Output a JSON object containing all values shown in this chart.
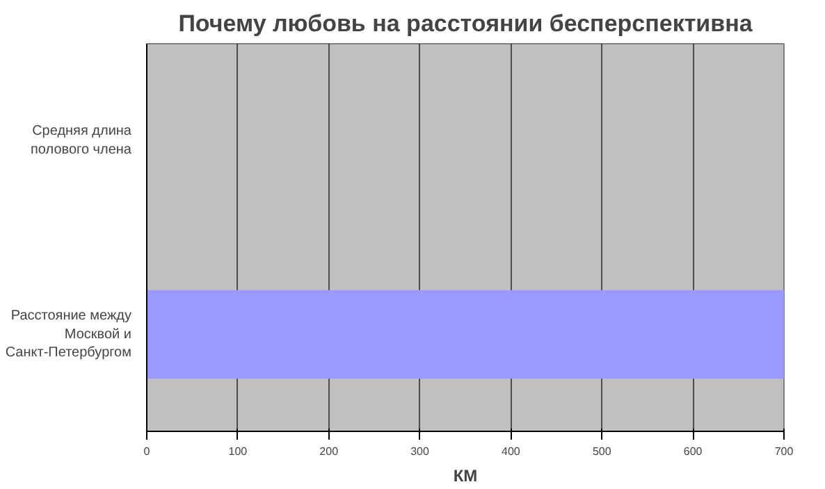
{
  "chart_data": {
    "type": "bar",
    "orientation": "horizontal",
    "title": "Почему любовь на расстоянии бесперспективна",
    "xlabel": "КМ",
    "categories": [
      "Средняя длина полового члена",
      "Расстояние между Москвой и Санкт-Петербургом"
    ],
    "values": [
      0,
      700
    ],
    "colors": [
      "#333399",
      "#9999ff"
    ],
    "xlim": [
      0,
      700
    ],
    "xticks": [
      0,
      100,
      200,
      300,
      400,
      500,
      600,
      700
    ],
    "grid": "x"
  }
}
